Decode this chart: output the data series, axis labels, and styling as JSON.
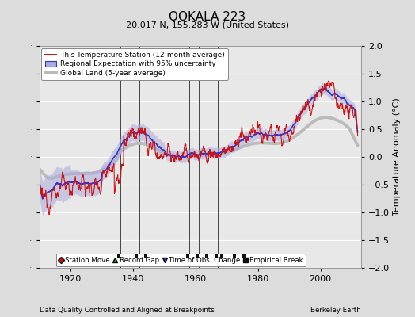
{
  "title": "OOKALA 223",
  "subtitle": "20.017 N, 155.283 W (United States)",
  "ylabel": "Temperature Anomaly (°C)",
  "xlabel_left": "Data Quality Controlled and Aligned at Breakpoints",
  "xlabel_right": "Berkeley Earth",
  "ylim": [
    -2,
    2
  ],
  "xlim": [
    1910,
    2013
  ],
  "xticks": [
    1920,
    1940,
    1960,
    1980,
    2000
  ],
  "yticks": [
    -2,
    -1.5,
    -1,
    -0.5,
    0,
    0.5,
    1,
    1.5,
    2
  ],
  "fig_bg_color": "#dcdcdc",
  "plot_bg_color": "#e8e8e8",
  "grid_color": "white",
  "station_color": "#cc1111",
  "regional_color": "#3333cc",
  "regional_band_color": "#aaaadd",
  "global_color": "#bbbbbb",
  "vertical_line_color": "#444444",
  "empirical_breaks": [
    1935.5,
    1941.0,
    1944.0,
    1957.5,
    1960.5,
    1963.5,
    1966.5,
    1968.5,
    1972.5,
    1975.5
  ],
  "vertical_lines": [
    1936,
    1942,
    1958,
    1961,
    1967,
    1976
  ],
  "seed": 12345
}
